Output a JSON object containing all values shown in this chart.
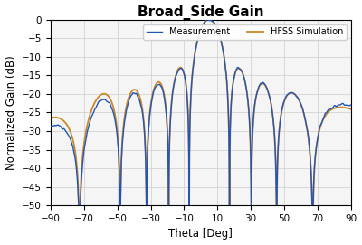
{
  "title": "Broad_Side Gain",
  "xlabel": "Theta [Deg]",
  "ylabel": "Normalized Gain (dB)",
  "xlim": [
    -90,
    90
  ],
  "ylim": [
    -50,
    0
  ],
  "xticks": [
    -90,
    -70,
    -50,
    -30,
    -10,
    10,
    30,
    50,
    70,
    90
  ],
  "yticks": [
    0,
    -5,
    -10,
    -15,
    -20,
    -25,
    -30,
    -35,
    -40,
    -45,
    -50
  ],
  "measurement_color": "#2255bb",
  "hfss_color": "#cc8822",
  "title_fontsize": 11,
  "axis_label_fontsize": 8.5,
  "tick_fontsize": 7.5,
  "legend_labels": [
    "Measurement",
    "HFSS Simulation"
  ],
  "background_color": "#ffffff",
  "plot_bg_color": "#f5f5f5",
  "grid_color": "#cccccc"
}
